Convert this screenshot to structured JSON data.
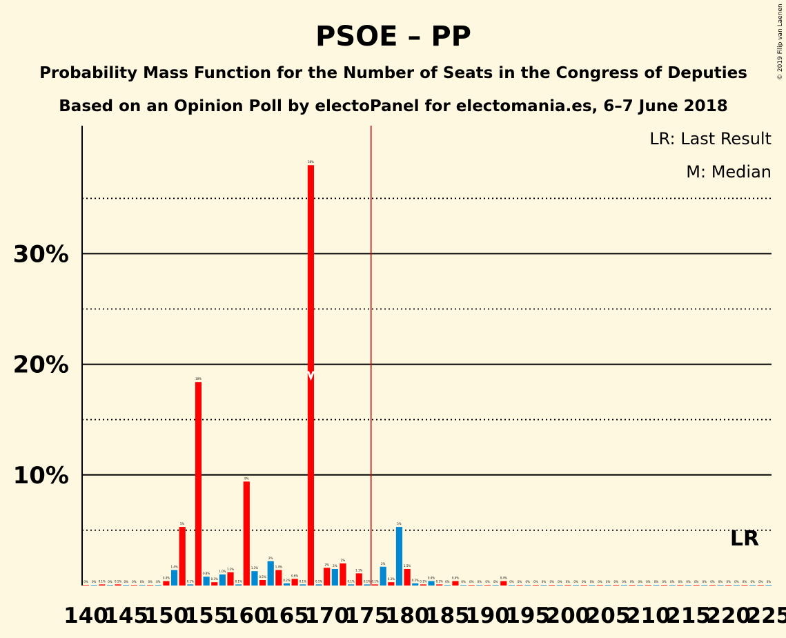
{
  "chart_data": {
    "type": "bar",
    "title": "PSOE – PP",
    "subtitle1": "Probability Mass Function for the Number of Seats in the Congress of Deputies",
    "subtitle2": "Based on an Opinion Poll by electoPanel for electomania.es, 6–7 June 2018",
    "copyright": "© 2019 Filip van Laenen",
    "legend": {
      "lr": "LR: Last Result",
      "median": "M: Median"
    },
    "lr_label": "LR",
    "y_ticks": [
      "10%",
      "20%",
      "30%"
    ],
    "x_ticks": [
      "140",
      "145",
      "150",
      "155",
      "160",
      "165",
      "170",
      "175",
      "180",
      "185",
      "190",
      "195",
      "200",
      "205",
      "210",
      "215",
      "220",
      "225"
    ],
    "x_range": [
      140,
      225
    ],
    "y_max_percent": 40,
    "majority_line": 176,
    "median": 168,
    "last_result": 222,
    "colors": {
      "psoe": "#FF0000",
      "pp": "#0288D1",
      "background": "#FFF8E1",
      "text": "#000000"
    },
    "bars": [
      {
        "x": 140,
        "value": 0.02,
        "label": "0%",
        "party": "psoe"
      },
      {
        "x": 141,
        "value": 0.02,
        "label": "0%",
        "party": "pp"
      },
      {
        "x": 142,
        "value": 0.1,
        "label": "0.1%",
        "party": "psoe"
      },
      {
        "x": 143,
        "value": 0.02,
        "label": "0%",
        "party": "pp"
      },
      {
        "x": 144,
        "value": 0.1,
        "label": "0.1%",
        "party": "psoe"
      },
      {
        "x": 145,
        "value": 0.02,
        "label": "0%",
        "party": "pp"
      },
      {
        "x": 146,
        "value": 0.02,
        "label": "0%",
        "party": "psoe"
      },
      {
        "x": 147,
        "value": 0.02,
        "label": "0%",
        "party": "pp"
      },
      {
        "x": 148,
        "value": 0.02,
        "label": "0%",
        "party": "psoe"
      },
      {
        "x": 149,
        "value": 0.02,
        "label": "0%",
        "party": "pp"
      },
      {
        "x": 150,
        "value": 0.4,
        "label": "0.4%",
        "party": "psoe"
      },
      {
        "x": 151,
        "value": 1.4,
        "label": "1.4%",
        "party": "pp"
      },
      {
        "x": 152,
        "value": 5.3,
        "label": "5%",
        "party": "psoe"
      },
      {
        "x": 153,
        "value": 0.1,
        "label": "0.1%",
        "party": "pp"
      },
      {
        "x": 154,
        "value": 18.4,
        "label": "18%",
        "party": "psoe"
      },
      {
        "x": 155,
        "value": 0.8,
        "label": "0.8%",
        "party": "pp"
      },
      {
        "x": 156,
        "value": 0.3,
        "label": "0.3%",
        "party": "psoe"
      },
      {
        "x": 157,
        "value": 1.0,
        "label": "1.0%",
        "party": "pp"
      },
      {
        "x": 158,
        "value": 1.2,
        "label": "1.2%",
        "party": "psoe"
      },
      {
        "x": 159,
        "value": 0.1,
        "label": "0.1%",
        "party": "pp"
      },
      {
        "x": 160,
        "value": 9.4,
        "label": "9%",
        "party": "psoe"
      },
      {
        "x": 161,
        "value": 1.3,
        "label": "1.3%",
        "party": "pp"
      },
      {
        "x": 162,
        "value": 0.5,
        "label": "0.5%",
        "party": "psoe"
      },
      {
        "x": 163,
        "value": 2.2,
        "label": "2%",
        "party": "pp"
      },
      {
        "x": 164,
        "value": 1.4,
        "label": "1.4%",
        "party": "psoe"
      },
      {
        "x": 165,
        "value": 0.2,
        "label": "0.2%",
        "party": "pp"
      },
      {
        "x": 166,
        "value": 0.6,
        "label": "0.6%",
        "party": "psoe"
      },
      {
        "x": 167,
        "value": 0.1,
        "label": "0.1%",
        "party": "pp"
      },
      {
        "x": 168,
        "value": 38.0,
        "label": "38%",
        "party": "psoe"
      },
      {
        "x": 169,
        "value": 0.1,
        "label": "0.1%",
        "party": "pp"
      },
      {
        "x": 170,
        "value": 1.6,
        "label": "2%",
        "party": "psoe"
      },
      {
        "x": 171,
        "value": 1.5,
        "label": "2%",
        "party": "pp"
      },
      {
        "x": 172,
        "value": 2.0,
        "label": "2%",
        "party": "psoe"
      },
      {
        "x": 173,
        "value": 0.1,
        "label": "0.1%",
        "party": "pp"
      },
      {
        "x": 174,
        "value": 1.1,
        "label": "1.1%",
        "party": "psoe"
      },
      {
        "x": 175,
        "value": 0.1,
        "label": "0.1%",
        "party": "pp"
      },
      {
        "x": 176,
        "value": 0.1,
        "label": "0.1%",
        "party": "psoe"
      },
      {
        "x": 177,
        "value": 1.7,
        "label": "2%",
        "party": "pp"
      },
      {
        "x": 178,
        "value": 0.3,
        "label": "0.3%",
        "party": "psoe"
      },
      {
        "x": 179,
        "value": 5.3,
        "label": "5%",
        "party": "pp"
      },
      {
        "x": 180,
        "value": 1.5,
        "label": "1.5%",
        "party": "psoe"
      },
      {
        "x": 181,
        "value": 0.2,
        "label": "0.2%",
        "party": "pp"
      },
      {
        "x": 182,
        "value": 0.1,
        "label": "0.1%",
        "party": "psoe"
      },
      {
        "x": 183,
        "value": 0.4,
        "label": "0.4%",
        "party": "pp"
      },
      {
        "x": 184,
        "value": 0.1,
        "label": "0.1%",
        "party": "psoe"
      },
      {
        "x": 185,
        "value": 0.02,
        "label": "0%",
        "party": "pp"
      },
      {
        "x": 186,
        "value": 0.4,
        "label": "0.4%",
        "party": "psoe"
      },
      {
        "x": 187,
        "value": 0.02,
        "label": "0%",
        "party": "pp"
      },
      {
        "x": 188,
        "value": 0.02,
        "label": "0%",
        "party": "psoe"
      },
      {
        "x": 189,
        "value": 0.02,
        "label": "0%",
        "party": "pp"
      },
      {
        "x": 190,
        "value": 0.02,
        "label": "0%",
        "party": "psoe"
      },
      {
        "x": 191,
        "value": 0.02,
        "label": "0%",
        "party": "pp"
      },
      {
        "x": 192,
        "value": 0.4,
        "label": "0.4%",
        "party": "psoe"
      },
      {
        "x": 193,
        "value": 0.02,
        "label": "0%",
        "party": "pp"
      },
      {
        "x": 194,
        "value": 0.02,
        "label": "0%",
        "party": "psoe"
      },
      {
        "x": 195,
        "value": 0.02,
        "label": "0%",
        "party": "pp"
      },
      {
        "x": 196,
        "value": 0.02,
        "label": "0%",
        "party": "psoe"
      },
      {
        "x": 197,
        "value": 0.02,
        "label": "0%",
        "party": "pp"
      },
      {
        "x": 198,
        "value": 0.02,
        "label": "0%",
        "party": "psoe"
      },
      {
        "x": 199,
        "value": 0.02,
        "label": "0%",
        "party": "pp"
      },
      {
        "x": 200,
        "value": 0.02,
        "label": "0%",
        "party": "psoe"
      },
      {
        "x": 201,
        "value": 0.02,
        "label": "0%",
        "party": "pp"
      },
      {
        "x": 202,
        "value": 0.02,
        "label": "0%",
        "party": "psoe"
      },
      {
        "x": 203,
        "value": 0.02,
        "label": "0%",
        "party": "pp"
      },
      {
        "x": 204,
        "value": 0.02,
        "label": "0%",
        "party": "psoe"
      },
      {
        "x": 205,
        "value": 0.02,
        "label": "0%",
        "party": "pp"
      },
      {
        "x": 206,
        "value": 0.02,
        "label": "0%",
        "party": "psoe"
      },
      {
        "x": 207,
        "value": 0.02,
        "label": "0%",
        "party": "pp"
      },
      {
        "x": 208,
        "value": 0.02,
        "label": "0%",
        "party": "psoe"
      },
      {
        "x": 209,
        "value": 0.02,
        "label": "0%",
        "party": "pp"
      },
      {
        "x": 210,
        "value": 0.02,
        "label": "0%",
        "party": "psoe"
      },
      {
        "x": 211,
        "value": 0.02,
        "label": "0%",
        "party": "pp"
      },
      {
        "x": 212,
        "value": 0.02,
        "label": "0%",
        "party": "psoe"
      },
      {
        "x": 213,
        "value": 0.02,
        "label": "0%",
        "party": "pp"
      },
      {
        "x": 214,
        "value": 0.02,
        "label": "0%",
        "party": "psoe"
      },
      {
        "x": 215,
        "value": 0.02,
        "label": "0%",
        "party": "pp"
      },
      {
        "x": 216,
        "value": 0.02,
        "label": "0%",
        "party": "psoe"
      },
      {
        "x": 217,
        "value": 0.02,
        "label": "0%",
        "party": "pp"
      },
      {
        "x": 218,
        "value": 0.02,
        "label": "0%",
        "party": "psoe"
      },
      {
        "x": 219,
        "value": 0.02,
        "label": "0%",
        "party": "pp"
      },
      {
        "x": 220,
        "value": 0.02,
        "label": "0%",
        "party": "psoe"
      },
      {
        "x": 221,
        "value": 0.02,
        "label": "0%",
        "party": "pp"
      },
      {
        "x": 222,
        "value": 0.02,
        "label": "0%",
        "party": "psoe"
      },
      {
        "x": 223,
        "value": 0.02,
        "label": "0%",
        "party": "pp"
      },
      {
        "x": 224,
        "value": 0.02,
        "label": "0%",
        "party": "psoe"
      },
      {
        "x": 225,
        "value": 0.02,
        "label": "0%",
        "party": "pp"
      }
    ]
  }
}
